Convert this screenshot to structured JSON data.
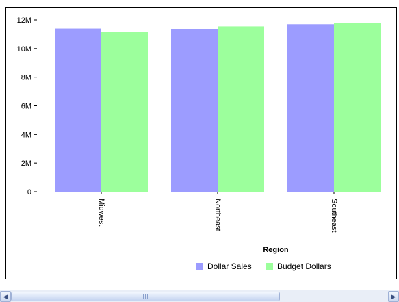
{
  "chart_data": {
    "type": "bar",
    "categories": [
      "Midwest",
      "Northeast",
      "Southeast"
    ],
    "series": [
      {
        "name": "Dollar Sales",
        "values": [
          11400000,
          11350000,
          11700000
        ],
        "color": "#9c9cff"
      },
      {
        "name": "Budget Dollars",
        "values": [
          11150000,
          11550000,
          11800000
        ],
        "color": "#9cff9c"
      }
    ],
    "xlabel": "Region",
    "ylabel": "",
    "ylim": [
      0,
      12000000
    ],
    "yticks": [
      {
        "value": 0,
        "label": "0"
      },
      {
        "value": 2000000,
        "label": "2M"
      },
      {
        "value": 4000000,
        "label": "4M"
      },
      {
        "value": 6000000,
        "label": "6M"
      },
      {
        "value": 8000000,
        "label": "8M"
      },
      {
        "value": 10000000,
        "label": "10M"
      },
      {
        "value": 12000000,
        "label": "12M"
      }
    ],
    "grid": false,
    "legend_position": "bottom"
  },
  "scrollbar": {
    "left_icon": "arrow-left-icon",
    "right_icon": "arrow-right-icon"
  }
}
